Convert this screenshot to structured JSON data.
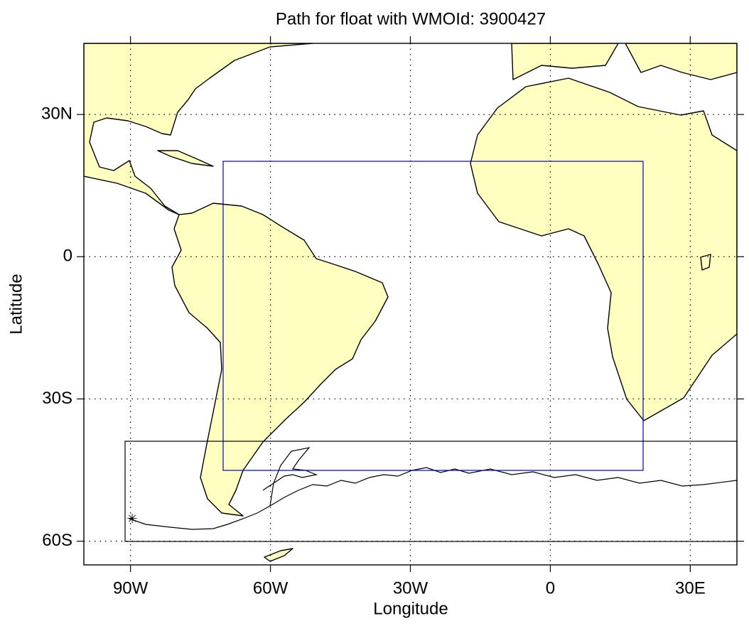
{
  "chart_data": {
    "type": "map",
    "title": "Path for float with WMOId: 3900427",
    "xlabel": "Longitude",
    "ylabel": "Latitude",
    "xlim": [
      -100,
      40
    ],
    "ylim": [
      -65,
      45
    ],
    "xticks": [
      {
        "value": -90,
        "label": "90W"
      },
      {
        "value": -60,
        "label": "60W"
      },
      {
        "value": -30,
        "label": "30W"
      },
      0,
      {
        "value": 30,
        "label": "30E"
      }
    ],
    "yticks": [
      {
        "value": 30,
        "label": "30N"
      },
      0,
      {
        "value": -30,
        "label": "30S"
      },
      {
        "value": -60,
        "label": "60S"
      }
    ],
    "grid": true
  }
}
